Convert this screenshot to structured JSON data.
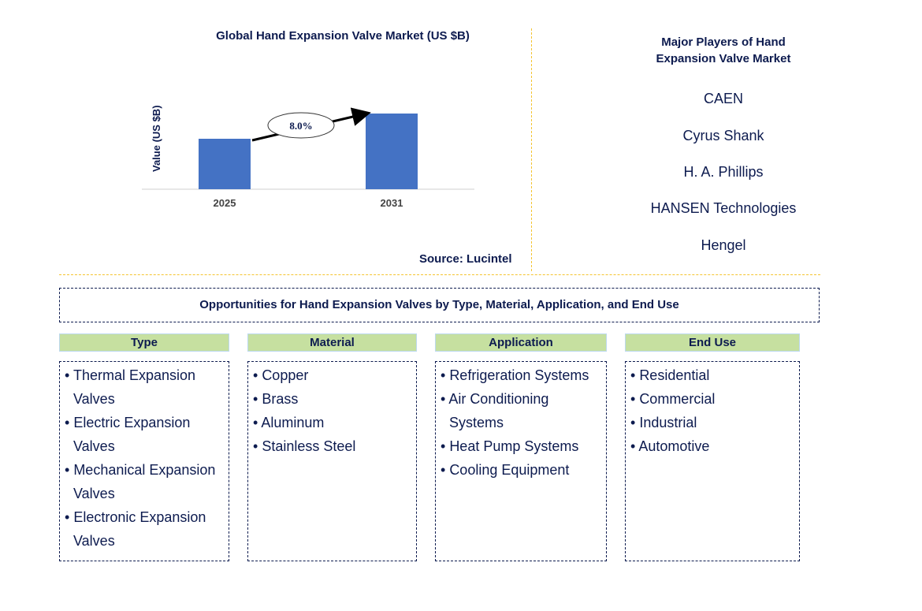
{
  "chart_data": {
    "type": "bar",
    "title": "Global Hand Expansion Valve Market (US $B)",
    "ylabel": "Value (US $B)",
    "xlabel": "",
    "categories": [
      "2025",
      "2031"
    ],
    "values": [
      1.0,
      1.5
    ],
    "annotation": "8.0%",
    "bar_color": "#4472c4",
    "grid": false,
    "source": "Source: Lucintel"
  },
  "players": {
    "title": "Major Players of Hand Expansion Valve Market",
    "items": [
      "CAEN",
      "Cyrus Shank",
      "H. A. Phillips",
      "HANSEN Technologies",
      "Hengel"
    ]
  },
  "opportunities": {
    "title": "Opportunities for Hand Expansion Valves by Type, Material, Application, and End Use",
    "columns": [
      {
        "header": "Type",
        "items": [
          "Thermal Expansion Valves",
          "Electric Expansion Valves",
          "Mechanical Expansion Valves",
          "Electronic Expansion Valves"
        ]
      },
      {
        "header": "Material",
        "items": [
          "Copper",
          "Brass",
          "Aluminum",
          "Stainless Steel"
        ]
      },
      {
        "header": "Application",
        "items": [
          "Refrigeration Systems",
          "Air Conditioning Systems",
          "Heat Pump Systems",
          "Cooling Equipment"
        ]
      },
      {
        "header": "End Use",
        "items": [
          "Residential",
          "Commercial",
          "Industrial",
          "Automotive"
        ]
      }
    ]
  },
  "colors": {
    "header_bg": "#c6e0a0",
    "text": "#0d1b4f",
    "divider": "#f4c430"
  }
}
